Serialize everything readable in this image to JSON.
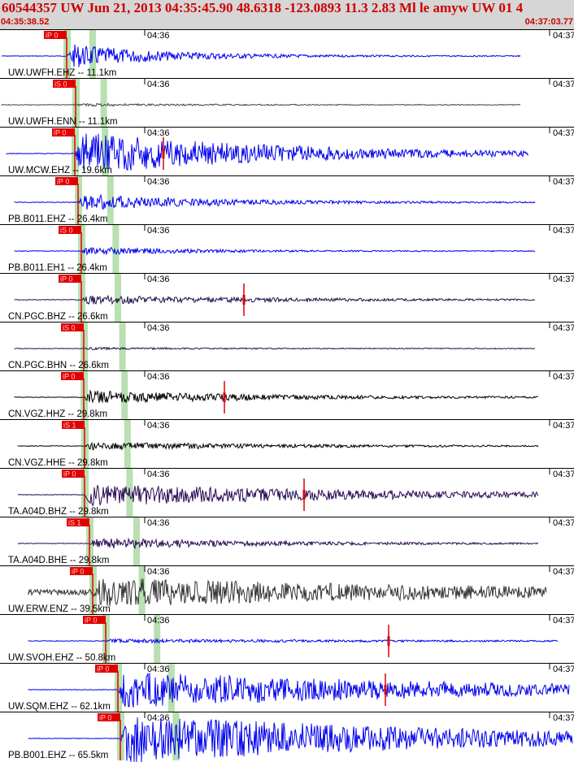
{
  "header": {
    "title": "60544357 UW Jun 21, 2013 04:35:45.90   48.6318 -123.0893 11.3 2.83 Ml le amyw UW 01    4",
    "start_time": "04:35:38.52",
    "end_time": "04:37:03.77"
  },
  "colors": {
    "header_bg": "#d6d6d6",
    "header_text": "#cc0000",
    "pick_box": "#e00000",
    "pick_window": "#b8e0b0",
    "trace_blue": "#0000ee",
    "trace_gray": "#444444",
    "trace_navy": "#20104a",
    "trace_black": "#000000",
    "trace_purple": "#2a0a55",
    "trace_dark": "#333333",
    "spike": "#dd0000"
  },
  "time_marks": {
    "minute_label": "04:36",
    "edge_label": "04:37"
  },
  "channels": [
    {
      "label": "UW.UWFH.EHZ -- 11.1km",
      "pick": "iP 0",
      "color": "trace_blue",
      "amp": 1.0,
      "duration": 0.22,
      "spike": null
    },
    {
      "label": "UW.UWFH.ENN -- 11.1km",
      "pick": "iS 0",
      "color": "trace_gray",
      "amp": 0.35,
      "duration": 0.25,
      "spike": null
    },
    {
      "label": "UW.MCW.EHZ -- 19.6km",
      "pick": "iP 0",
      "color": "trace_blue",
      "amp": 1.0,
      "duration": 0.45,
      "spike": 0.3
    },
    {
      "label": "PB.B011.EHZ -- 26.4km",
      "pick": "iP 0",
      "color": "trace_blue",
      "amp": 0.7,
      "duration": 0.3,
      "spike": null
    },
    {
      "label": "PB.B011.EH1 -- 26.4km",
      "pick": "iS 0",
      "color": "trace_blue",
      "amp": 0.6,
      "duration": 0.25,
      "spike": null
    },
    {
      "label": "CN.PGC.BHZ -- 26.6km",
      "pick": "iP 0",
      "color": "trace_navy",
      "amp": 0.5,
      "duration": 0.45,
      "spike": 0.44
    },
    {
      "label": "CN.PGC.BHN -- 26.6km",
      "pick": "iS 0",
      "color": "trace_navy",
      "amp": 0.25,
      "duration": 0.3,
      "spike": null
    },
    {
      "label": "CN.VGZ.HHZ -- 29.8km",
      "pick": "iP 0",
      "color": "trace_black",
      "amp": 0.65,
      "duration": 0.4,
      "spike": 0.4
    },
    {
      "label": "CN.VGZ.HHE -- 29.8km",
      "pick": "iS 1",
      "color": "trace_black",
      "amp": 0.45,
      "duration": 0.45,
      "spike": null
    },
    {
      "label": "TA.A04D.BHZ -- 29.8km",
      "pick": "iP 0",
      "color": "trace_purple",
      "amp": 0.85,
      "duration": 0.65,
      "spike": 0.55
    },
    {
      "label": "TA.A04D.BHE -- 29.8km",
      "pick": "iS 1",
      "color": "trace_purple",
      "amp": 0.55,
      "duration": 0.4,
      "spike": null
    },
    {
      "label": "UW.ERW.ENZ -- 39.5km",
      "pick": "iP 0",
      "color": "trace_dark",
      "amp": 1.0,
      "duration": 1.0,
      "spike": null
    },
    {
      "label": "UW.SVOH.EHZ -- 50.8km",
      "pick": "iP 0",
      "color": "trace_blue",
      "amp": 0.4,
      "duration": 0.65,
      "spike": 0.68
    },
    {
      "label": "UW.SQM.EHZ -- 62.1km",
      "pick": "iP 0",
      "color": "trace_blue",
      "amp": 1.0,
      "duration": 0.85,
      "spike": 0.66
    },
    {
      "label": "PB.B001.EHZ -- 65.5km",
      "pick": "iP 0",
      "color": "trace_blue",
      "amp": 1.0,
      "duration": 0.8,
      "spike": null
    }
  ]
}
